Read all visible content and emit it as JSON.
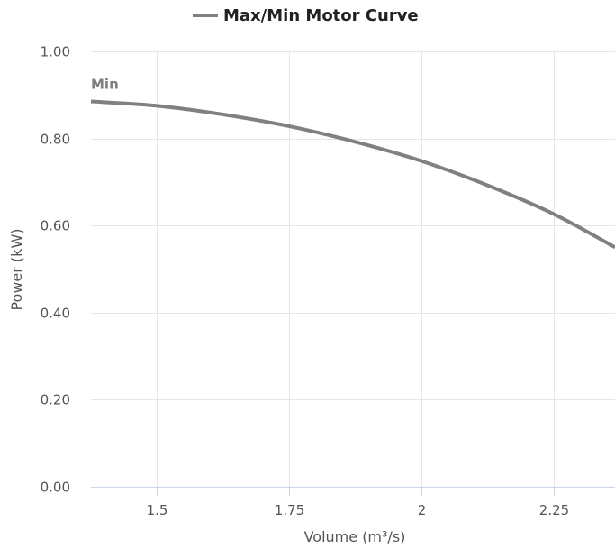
{
  "chart_data": {
    "type": "line",
    "title": "",
    "legend": {
      "position": "top-center",
      "entries": [
        "Max/Min Motor Curve"
      ]
    },
    "xlabel": "Volume (m³/s)",
    "ylabel": "Power (kW)",
    "xlim": [
      1.375,
      2.365
    ],
    "ylim": [
      0,
      1.0
    ],
    "x_ticks": [
      1.5,
      1.75,
      2,
      2.25
    ],
    "x_tick_labels": [
      "1.5",
      "1.75",
      "2",
      "2.25"
    ],
    "y_ticks": [
      0,
      0.2,
      0.4,
      0.6,
      0.8,
      1.0
    ],
    "y_tick_labels": [
      "0.00",
      "0.20",
      "0.40",
      "0.60",
      "0.80",
      "1.00"
    ],
    "grid": true,
    "series": [
      {
        "name": "Max/Min Motor Curve",
        "color": "#808080",
        "end_label": "Min",
        "x": [
          1.375,
          1.5,
          1.625,
          1.75,
          1.875,
          2.0,
          2.125,
          2.25,
          2.365
        ],
        "y": [
          0.885,
          0.875,
          0.855,
          0.828,
          0.792,
          0.748,
          0.692,
          0.626,
          0.55
        ]
      }
    ]
  }
}
